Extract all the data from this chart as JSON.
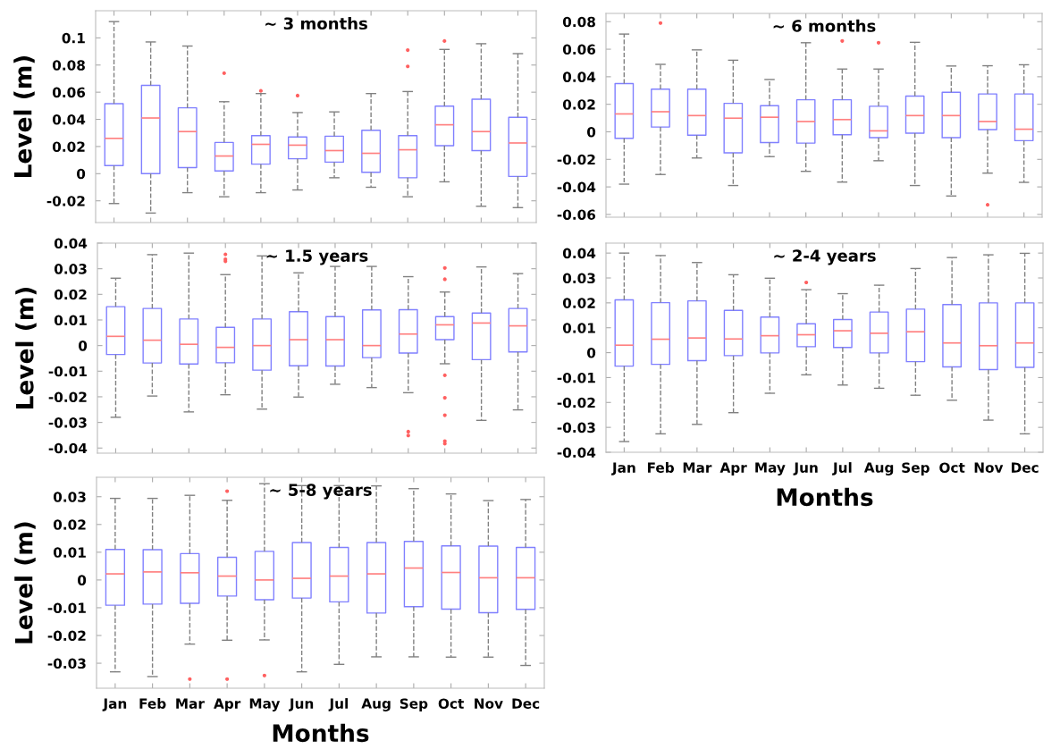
{
  "chart_data": [
    {
      "type": "box",
      "title": "~ 3 months",
      "ylabel": "Level (m)",
      "categories": [
        null,
        null,
        null,
        null,
        null,
        null,
        null,
        null,
        null,
        null,
        null,
        null
      ],
      "ylim": [
        -0.036,
        0.12
      ],
      "yticks": [
        -0.02,
        0,
        0.02,
        0.04,
        0.06,
        0.08,
        0.1
      ],
      "tick_labels": "y",
      "grid": false,
      "series": [
        {
          "color": "#8080ff",
          "boxes": [
            {
              "low": -0.022,
              "q1": 0.006,
              "median": 0.026,
              "q3": 0.0515,
              "high": 0.112
            },
            {
              "low": -0.029,
              "q1": 0,
              "median": 0.041,
              "q3": 0.065,
              "high": 0.097
            },
            {
              "low": -0.014,
              "q1": 0.0045,
              "median": 0.031,
              "q3": 0.0485,
              "high": 0.094
            },
            {
              "low": -0.017,
              "q1": 0.002,
              "median": 0.013,
              "q3": 0.023,
              "high": 0.053,
              "outliers": [
                0.074
              ]
            },
            {
              "low": -0.014,
              "q1": 0.007,
              "median": 0.0216,
              "q3": 0.028,
              "high": 0.059,
              "outliers": [
                0.061
              ]
            },
            {
              "low": -0.012,
              "q1": 0.011,
              "median": 0.021,
              "q3": 0.027,
              "high": 0.045,
              "outliers": [
                0.0575
              ]
            },
            {
              "low": -0.003,
              "q1": 0.0085,
              "median": 0.017,
              "q3": 0.0276,
              "high": 0.0455
            },
            {
              "low": -0.01,
              "q1": 0.001,
              "median": 0.015,
              "q3": 0.032,
              "high": 0.059
            },
            {
              "low": -0.017,
              "q1": -0.003,
              "median": 0.0176,
              "q3": 0.028,
              "high": 0.0605,
              "outliers": [
                0.079,
                0.091
              ]
            },
            {
              "low": -0.006,
              "q1": 0.0206,
              "median": 0.036,
              "q3": 0.0497,
              "high": 0.0915,
              "outliers": [
                0.0977
              ]
            },
            {
              "low": -0.024,
              "q1": 0.017,
              "median": 0.031,
              "q3": 0.0548,
              "high": 0.0957
            },
            {
              "low": -0.025,
              "q1": -0.002,
              "median": 0.0226,
              "q3": 0.0415,
              "high": 0.0884
            }
          ]
        }
      ]
    },
    {
      "type": "box",
      "title": "~ 6 months",
      "categories": [
        null,
        null,
        null,
        null,
        null,
        null,
        null,
        null,
        null,
        null,
        null,
        null
      ],
      "ylim": [
        -0.062,
        0.086
      ],
      "yticks": [
        -0.06,
        -0.04,
        -0.02,
        0,
        0.02,
        0.04,
        0.06,
        0.08
      ],
      "tick_labels": "y",
      "grid": false,
      "series": [
        {
          "color": "#8080ff",
          "boxes": [
            {
              "low": -0.038,
              "q1": -0.0047,
              "median": 0.013,
              "q3": 0.035,
              "high": 0.071
            },
            {
              "low": -0.031,
              "q1": 0.0035,
              "median": 0.0146,
              "q3": 0.031,
              "high": 0.049,
              "outliers": [
                0.079
              ]
            },
            {
              "low": -0.019,
              "q1": -0.0024,
              "median": 0.0118,
              "q3": 0.031,
              "high": 0.0595
            },
            {
              "low": -0.039,
              "q1": -0.0153,
              "median": 0.0099,
              "q3": 0.0207,
              "high": 0.052
            },
            {
              "low": -0.018,
              "q1": -0.0078,
              "median": 0.0106,
              "q3": 0.019,
              "high": 0.038
            },
            {
              "low": -0.0287,
              "q1": -0.0082,
              "median": 0.0075,
              "q3": 0.0233,
              "high": 0.0647
            },
            {
              "low": -0.0365,
              "q1": -0.0021,
              "median": 0.0089,
              "q3": 0.0233,
              "high": 0.0456,
              "outliers": [
                0.066
              ]
            },
            {
              "low": -0.021,
              "q1": -0.0042,
              "median": 0.0007,
              "q3": 0.0186,
              "high": 0.0456,
              "outliers": [
                0.0647
              ]
            },
            {
              "low": -0.039,
              "q1": -0.001,
              "median": 0.0118,
              "q3": 0.026,
              "high": 0.065
            },
            {
              "low": -0.0466,
              "q1": -0.0042,
              "median": 0.0118,
              "q3": 0.0287,
              "high": 0.0478
            },
            {
              "low": -0.03,
              "q1": 0.0016,
              "median": 0.0075,
              "q3": 0.0275,
              "high": 0.048,
              "outliers": [
                -0.053
              ]
            },
            {
              "low": -0.0367,
              "q1": -0.0064,
              "median": 0.0019,
              "q3": 0.0275,
              "high": 0.0487
            }
          ]
        }
      ]
    },
    {
      "type": "box",
      "title": "~ 1.5 years",
      "ylabel": "Level (m)",
      "categories": [
        null,
        null,
        null,
        null,
        null,
        null,
        null,
        null,
        null,
        null,
        null,
        null
      ],
      "ylim": [
        -0.042,
        0.04
      ],
      "yticks": [
        -0.04,
        -0.03,
        -0.02,
        -0.01,
        0,
        0.01,
        0.02,
        0.03,
        0.04
      ],
      "tick_labels": "y",
      "grid": false,
      "series": [
        {
          "color": "#8080ff",
          "boxes": [
            {
              "low": -0.028,
              "q1": -0.0035,
              "median": 0.0036,
              "q3": 0.0152,
              "high": 0.0263
            },
            {
              "low": -0.0197,
              "q1": -0.0068,
              "median": 0.0021,
              "q3": 0.0145,
              "high": 0.0355
            },
            {
              "low": -0.0259,
              "q1": -0.0072,
              "median": 0.0005,
              "q3": 0.0104,
              "high": 0.0361
            },
            {
              "low": -0.0192,
              "q1": -0.0067,
              "median": -0.0007,
              "q3": 0.0071,
              "high": 0.0277,
              "outliers": [
                0.0329,
                0.0337,
                0.0356
              ]
            },
            {
              "low": -0.0248,
              "q1": -0.0096,
              "median": 0,
              "q3": 0.0104,
              "high": 0.035
            },
            {
              "low": -0.0201,
              "q1": -0.0079,
              "median": 0.0023,
              "q3": 0.0132,
              "high": 0.0284
            },
            {
              "low": -0.0151,
              "q1": -0.008,
              "median": 0.0023,
              "q3": 0.0113,
              "high": 0.0309
            },
            {
              "low": -0.0164,
              "q1": -0.0047,
              "median": 0,
              "q3": 0.0139,
              "high": 0.0309
            },
            {
              "low": -0.0184,
              "q1": -0.0029,
              "median": 0.0045,
              "q3": 0.014,
              "high": 0.0269,
              "outliers": [
                -0.0336,
                -0.0351
              ]
            },
            {
              "low": -0.0071,
              "q1": 0.0023,
              "median": 0.0081,
              "q3": 0.0113,
              "high": 0.0209,
              "outliers": [
                0.0303,
                0.0259,
                -0.0116,
                -0.0204,
                -0.0272,
                -0.0373,
                -0.0383
              ]
            },
            {
              "low": -0.0292,
              "q1": -0.0055,
              "median": 0.0088,
              "q3": 0.0127,
              "high": 0.0307
            },
            {
              "low": -0.0251,
              "q1": -0.0025,
              "median": 0.0077,
              "q3": 0.0145,
              "high": 0.0281
            }
          ]
        }
      ]
    },
    {
      "type": "box",
      "title": "~ 2-4 years",
      "xlabel": "Months",
      "categories": [
        "Jan",
        "Feb",
        "Mar",
        "Apr",
        "May",
        "Jun",
        "Jul",
        "Aug",
        "Sep",
        "Oct",
        "Nov",
        "Dec"
      ],
      "ylim": [
        -0.04,
        0.044
      ],
      "yticks": [
        -0.04,
        -0.03,
        -0.02,
        -0.01,
        0,
        0.01,
        0.02,
        0.03,
        0.04
      ],
      "grid": false,
      "series": [
        {
          "color": "#8080ff",
          "boxes": [
            {
              "low": -0.0357,
              "q1": -0.0054,
              "median": 0.003,
              "q3": 0.0212,
              "high": 0.04
            },
            {
              "low": -0.0326,
              "q1": -0.0047,
              "median": 0.0054,
              "q3": 0.0201,
              "high": 0.039
            },
            {
              "low": -0.0288,
              "q1": -0.0032,
              "median": 0.0059,
              "q3": 0.0208,
              "high": 0.0362
            },
            {
              "low": -0.0241,
              "q1": -0.0012,
              "median": 0.0055,
              "q3": 0.017,
              "high": 0.0313
            },
            {
              "low": -0.0163,
              "q1": -0.0001,
              "median": 0.0068,
              "q3": 0.0143,
              "high": 0.0299
            },
            {
              "low": -0.0089,
              "q1": 0.0024,
              "median": 0.0072,
              "q3": 0.0116,
              "high": 0.0253,
              "outliers": [
                0.0282
              ]
            },
            {
              "low": -0.013,
              "q1": 0.0021,
              "median": 0.0088,
              "q3": 0.0133,
              "high": 0.0237
            },
            {
              "low": -0.0143,
              "q1": -0.0001,
              "median": 0.0078,
              "q3": 0.0163,
              "high": 0.0271
            },
            {
              "low": -0.0171,
              "q1": -0.0036,
              "median": 0.0084,
              "q3": 0.0175,
              "high": 0.0338
            },
            {
              "low": -0.0191,
              "q1": -0.0057,
              "median": 0.0039,
              "q3": 0.0193,
              "high": 0.0382
            },
            {
              "low": -0.0271,
              "q1": -0.0068,
              "median": 0.0028,
              "q3": 0.02,
              "high": 0.0393
            },
            {
              "low": -0.0326,
              "q1": -0.0059,
              "median": 0.0039,
              "q3": 0.02,
              "high": 0.0399
            }
          ]
        }
      ]
    },
    {
      "type": "box",
      "title": "~ 5-8 years",
      "xlabel": "Months",
      "ylabel": "Level (m)",
      "categories": [
        "Jan",
        "Feb",
        "Mar",
        "Apr",
        "May",
        "Jun",
        "Jul",
        "Aug",
        "Sep",
        "Oct",
        "Nov",
        "Dec"
      ],
      "ylim": [
        -0.039,
        0.037
      ],
      "yticks": [
        -0.03,
        -0.02,
        -0.01,
        0,
        0.01,
        0.02,
        0.03
      ],
      "grid": false,
      "series": [
        {
          "color": "#8080ff",
          "boxes": [
            {
              "low": -0.0331,
              "q1": -0.0091,
              "median": 0.0022,
              "q3": 0.011,
              "high": 0.0294
            },
            {
              "low": -0.0348,
              "q1": -0.0087,
              "median": 0.0029,
              "q3": 0.0109,
              "high": 0.0294
            },
            {
              "low": -0.0231,
              "q1": -0.0084,
              "median": 0.0026,
              "q3": 0.0095,
              "high": 0.0305,
              "outliers": [
                -0.0357
              ]
            },
            {
              "low": -0.0217,
              "q1": -0.0058,
              "median": 0.0014,
              "q3": 0.0082,
              "high": 0.0287,
              "outliers": [
                0.032,
                -0.0357
              ]
            },
            {
              "low": -0.0216,
              "q1": -0.0071,
              "median": 0,
              "q3": 0.0103,
              "high": 0.0347,
              "outliers": [
                -0.0344
              ]
            },
            {
              "low": -0.0331,
              "q1": -0.0065,
              "median": 0.0006,
              "q3": 0.0135,
              "high": 0.034
            },
            {
              "low": -0.0304,
              "q1": -0.0079,
              "median": 0.0014,
              "q3": 0.0117,
              "high": 0.034
            },
            {
              "low": -0.0277,
              "q1": -0.0119,
              "median": 0.0022,
              "q3": 0.0135,
              "high": 0.0339
            },
            {
              "low": -0.0277,
              "q1": -0.0096,
              "median": 0.0043,
              "q3": 0.0139,
              "high": 0.0329
            },
            {
              "low": -0.0278,
              "q1": -0.0105,
              "median": 0.0027,
              "q3": 0.0123,
              "high": 0.031
            },
            {
              "low": -0.0278,
              "q1": -0.0118,
              "median": 0.0008,
              "q3": 0.0122,
              "high": 0.0286
            },
            {
              "low": -0.0308,
              "q1": -0.0106,
              "median": 0.0008,
              "q3": 0.0117,
              "high": 0.029
            }
          ]
        }
      ]
    }
  ]
}
